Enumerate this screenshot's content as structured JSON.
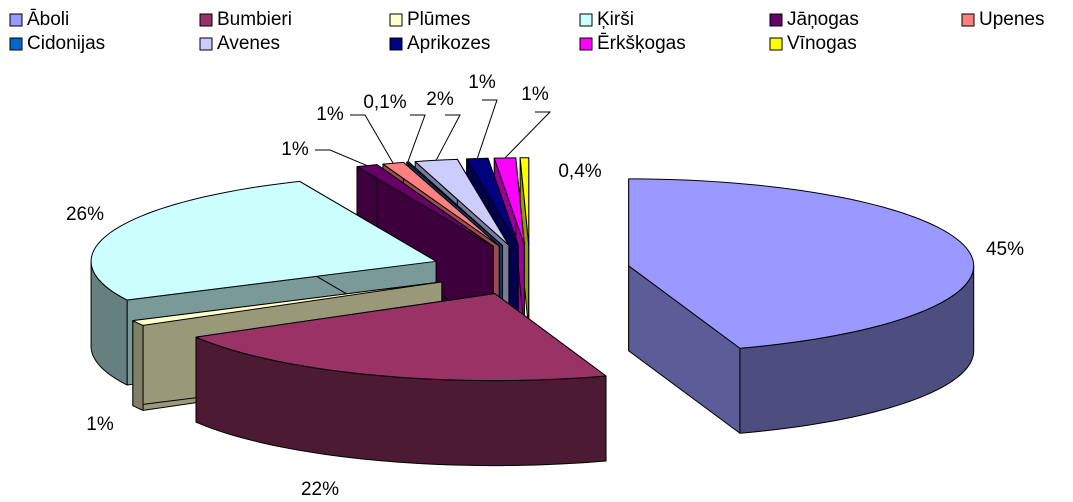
{
  "chart_data": {
    "type": "pie3d",
    "categories": [
      "Āboli",
      "Bumbieri",
      "Plūmes",
      "Ķirši",
      "Jāņogas",
      "Upenes",
      "Cidonijas",
      "Avenes",
      "Aprikozes",
      "Ērkšķogas",
      "Vīnogas"
    ],
    "values": [
      45,
      22,
      1,
      26,
      1,
      1,
      0.1,
      2,
      1,
      1,
      0.4
    ],
    "value_labels": [
      "45%",
      "22%",
      "1%",
      "26%",
      "1%",
      "1%",
      "0,1%",
      "2%",
      "1%",
      "1%",
      "0,4%"
    ],
    "colors": [
      "#9999ff",
      "#993366",
      "#ffffcc",
      "#ccffff",
      "#660066",
      "#ff8080",
      "#0066cc",
      "#ccccff",
      "#000080",
      "#ff00ff",
      "#ffff00"
    ],
    "legend": "top"
  }
}
